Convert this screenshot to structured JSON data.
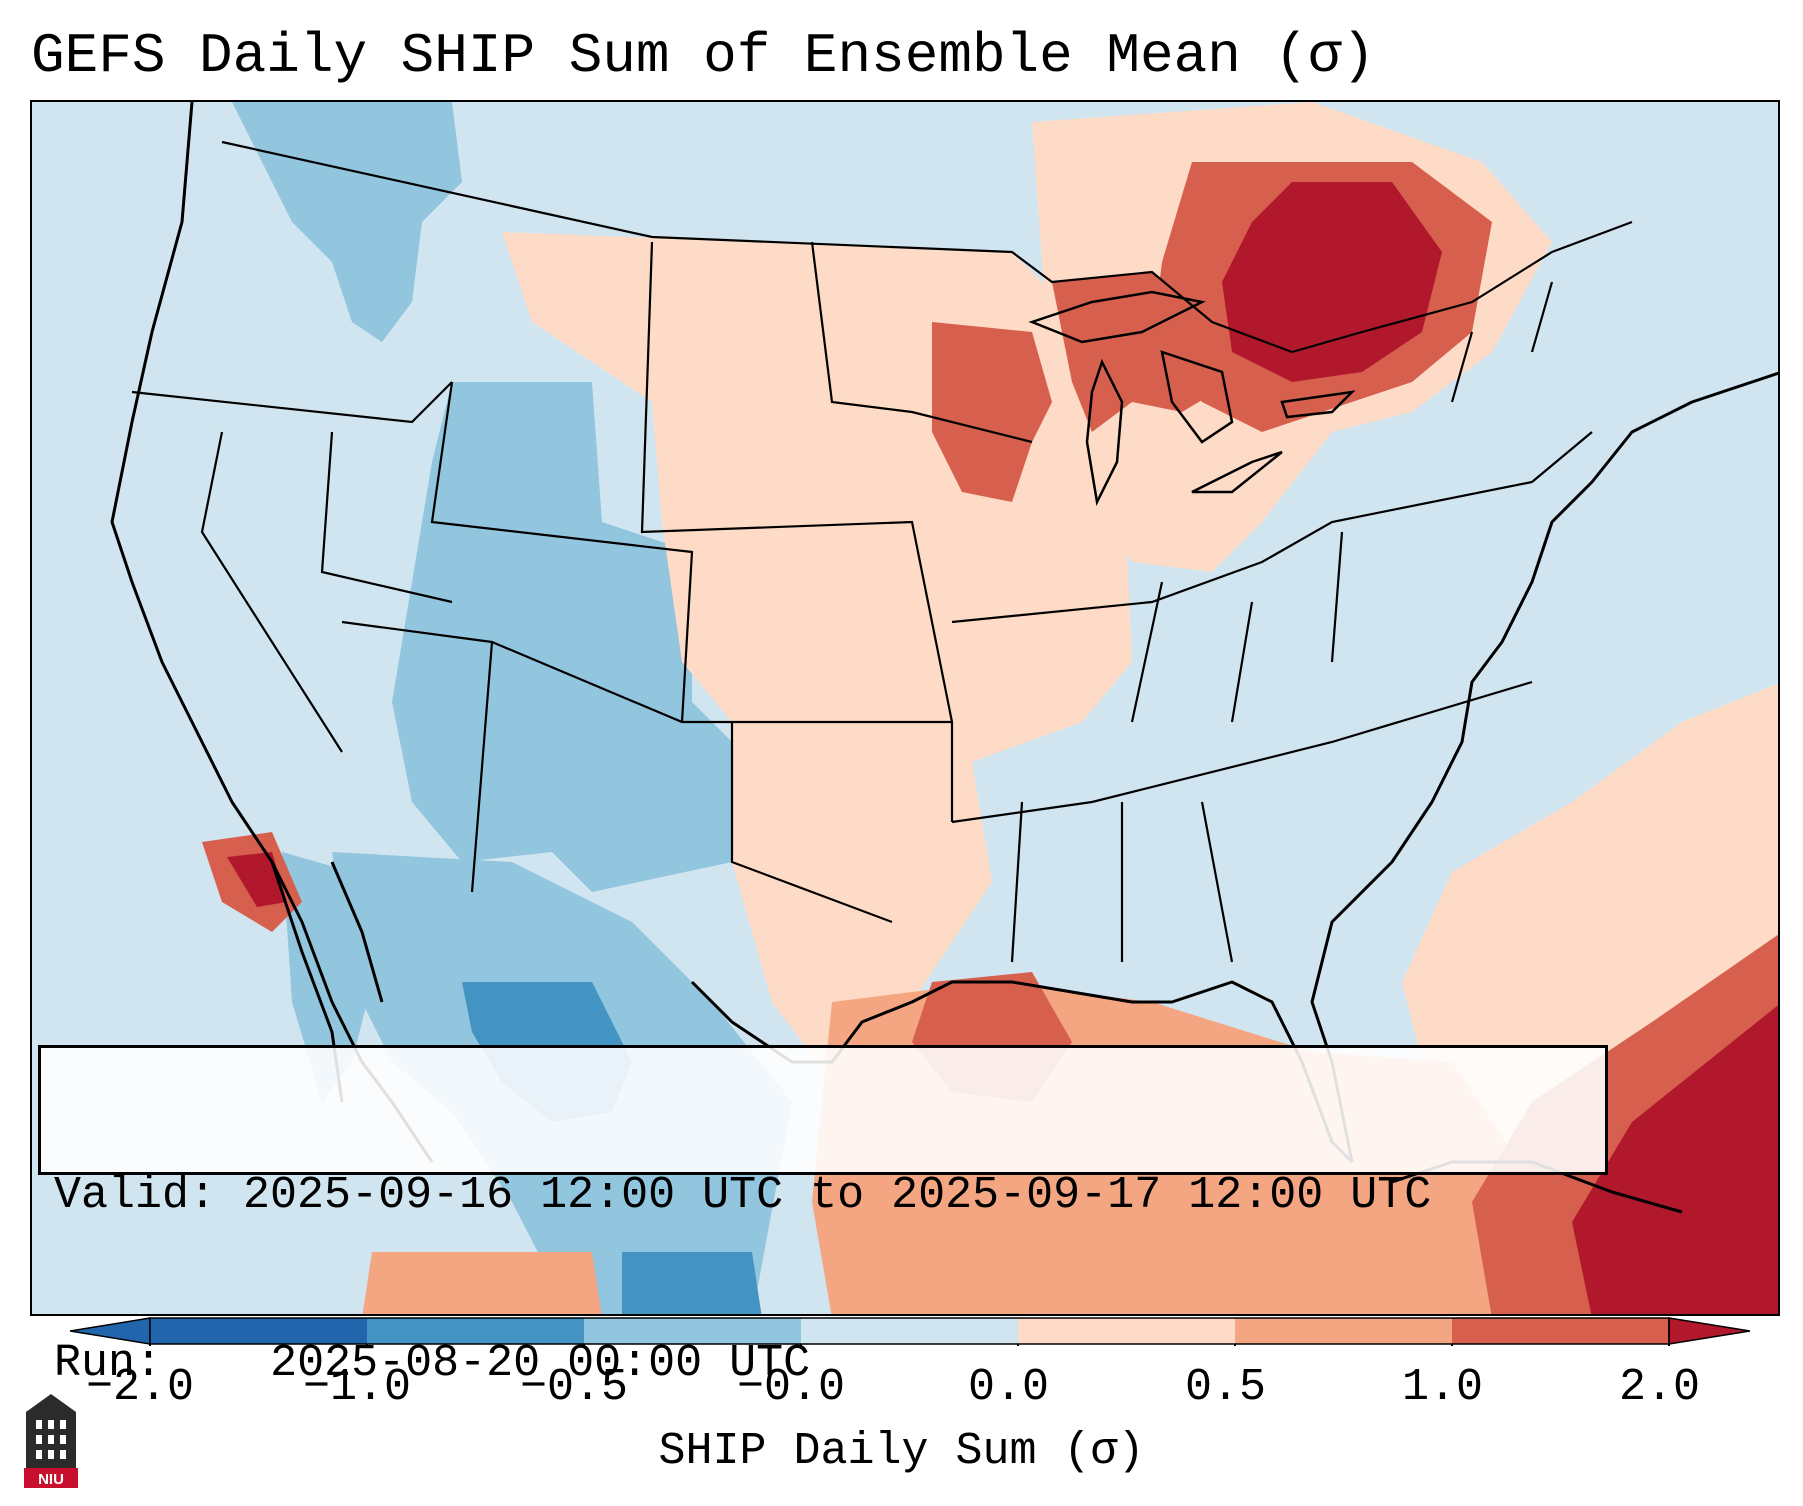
{
  "title": "GEFS Daily SHIP Sum of Ensemble Mean (σ)",
  "info": {
    "valid_label": "Valid:",
    "valid_value": "2025-09-16 12:00 UTC to 2025-09-17 12:00 UTC",
    "run_label": "Run:",
    "run_value": "2025-08-20 00:00 UTC"
  },
  "colorbar": {
    "label": "SHIP Daily Sum (σ)",
    "ticks": [
      "−2.0",
      "−1.0",
      "−0.5",
      "−0.0",
      "0.0",
      "0.5",
      "1.0",
      "2.0"
    ],
    "colors": [
      "#2166ac",
      "#4393c3",
      "#92c5de",
      "#d1e5f0",
      "#ffffff",
      "#fddbc7",
      "#f4a582",
      "#d6604d",
      "#b2182b"
    ],
    "extend": "both"
  },
  "logo": {
    "text": "NIU",
    "icon": "niu-logo-icon"
  },
  "map": {
    "region": "Contiguous United States",
    "background_color": "#d1e5f0"
  }
}
